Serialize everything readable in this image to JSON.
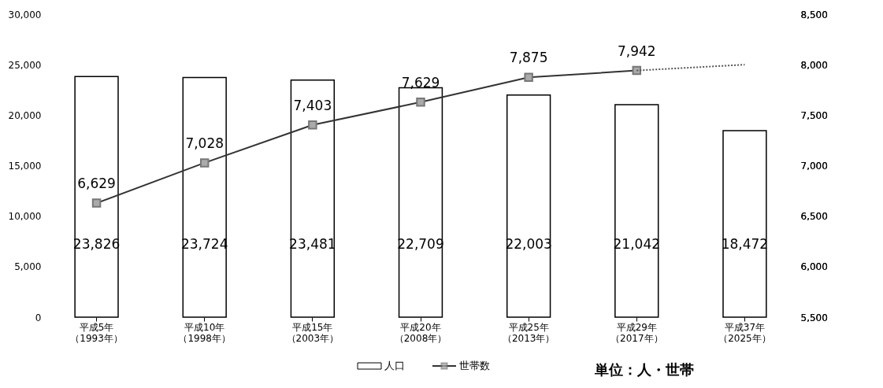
{
  "chart_data": {
    "type": "bar",
    "categories": [
      "平成5年（1993年）",
      "平成10年（1998年）",
      "平成15年（2003年）",
      "平成20年（2008年）",
      "平成25年（2013年）",
      "平成29年（2017年）",
      "平成37年（2025年）"
    ],
    "series": [
      {
        "name": "人口",
        "color": "#ffffff",
        "values": [
          23826,
          23724,
          23481,
          22709,
          22003,
          21042,
          18472
        ],
        "value_labels": [
          "23,826",
          "23,724",
          "23,481",
          "22,709",
          "22,003",
          "21,042",
          "18,472"
        ]
      },
      {
        "name": "世帯数",
        "type": "line",
        "axis": "y2",
        "color": "#333333",
        "marker": "square",
        "line_style": "solid",
        "x": [
          "平成5年（1993年）",
          "平成10年（1998年）",
          "平成15年（2003年）",
          "平成20年（2008年）",
          "平成25年（2013年）",
          "平成29年（2017年）"
        ],
        "values": [
          6629,
          7028,
          7403,
          7629,
          7875,
          7942
        ],
        "value_labels": [
          "6,629",
          "7,028",
          "7,403",
          "7,629",
          "7,875",
          "7,942"
        ]
      },
      {
        "type": "line",
        "axis": "y2",
        "color": "#555555",
        "line_style": "dotted",
        "x": [
          "平成29年（2017年）",
          "平成37年（2025年）"
        ],
        "values": [
          7942,
          8000
        ]
      }
    ],
    "ylim": [
      0,
      30000
    ],
    "yticks": [
      0,
      {
        "value": 5000,
        "label": "5,000"
      },
      {
        "value": 10000,
        "label": "10,000"
      },
      {
        "value": 15000,
        "label": "15,000"
      },
      {
        "value": 20000,
        "label": "20,000"
      },
      {
        "value": 25000,
        "label": "25,000"
      },
      {
        "value": 30000,
        "label": "30,000"
      }
    ],
    "y2lim": [
      5500,
      8500
    ],
    "y2ticks": [
      {
        "value": 5500,
        "label": "5,500"
      },
      {
        "value": 6000,
        "label": "6,000"
      },
      {
        "value": 6500,
        "label": "6,500"
      },
      {
        "value": 7000,
        "label": "7,000"
      },
      {
        "value": 7500,
        "label": "7,500"
      },
      {
        "value": 8000,
        "label": "8,000"
      },
      {
        "value": 8500,
        "label": "8,500"
      }
    ],
    "legend": "bottom",
    "annotations": [
      "単位：人・世帯"
    ]
  }
}
